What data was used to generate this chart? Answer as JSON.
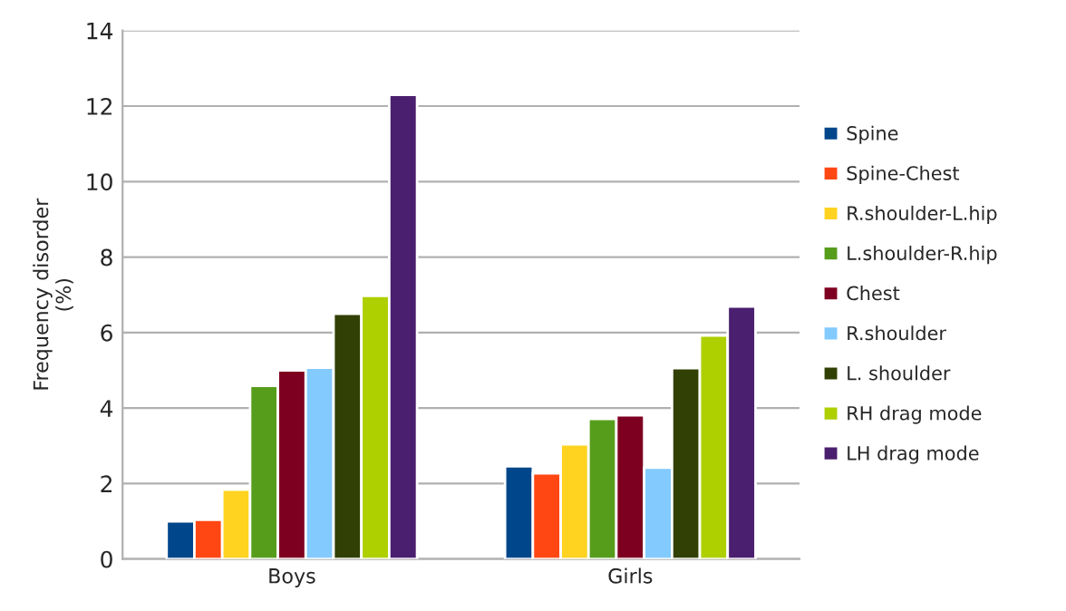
{
  "chart_data": {
    "type": "bar",
    "ylabel": "Frequency disorder\n(%)",
    "categories": [
      "Boys",
      "Girls"
    ],
    "series": [
      {
        "name": "Spine",
        "color": "#00468b",
        "values": [
          1.0,
          2.46
        ]
      },
      {
        "name": "Spine-Chest",
        "color": "#ff4714",
        "values": [
          1.04,
          2.27
        ]
      },
      {
        "name": "R.shoulder-L.hip",
        "color": "#ffd320",
        "values": [
          1.84,
          3.04
        ]
      },
      {
        "name": "L.shoulder-R.hip",
        "color": "#579d1c",
        "values": [
          4.59,
          3.71
        ]
      },
      {
        "name": "Chest",
        "color": "#7e0021",
        "values": [
          5.0,
          3.81
        ]
      },
      {
        "name": "R.shoulder",
        "color": "#83caff",
        "values": [
          5.07,
          2.42
        ]
      },
      {
        "name": "L. shoulder",
        "color": "#314004",
        "values": [
          6.5,
          5.06
        ]
      },
      {
        "name": "RH drag mode",
        "color": "#aecf00",
        "values": [
          6.97,
          5.92
        ]
      },
      {
        "name": "LH drag mode",
        "color": "#4b1f6f",
        "values": [
          12.3,
          6.69
        ]
      }
    ],
    "ylim": [
      0,
      14
    ],
    "yticks": [
      0,
      2,
      4,
      6,
      8,
      10,
      12,
      14
    ],
    "grid": "y",
    "legend": "right"
  }
}
